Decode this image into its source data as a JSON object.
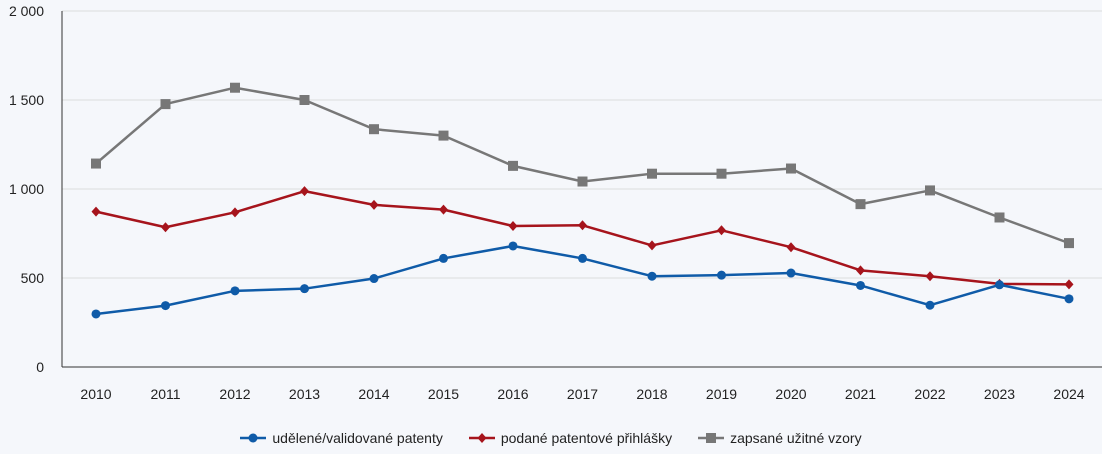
{
  "chart_data": {
    "type": "line",
    "title": "",
    "xlabel": "",
    "ylabel": "",
    "categories": [
      "2010",
      "2011",
      "2012",
      "2013",
      "2014",
      "2015",
      "2016",
      "2017",
      "2018",
      "2019",
      "2020",
      "2021",
      "2022",
      "2023",
      "2024"
    ],
    "ylim": [
      0,
      2000
    ],
    "yticks": [
      0,
      500,
      1000,
      1500,
      2000
    ],
    "ytick_labels": [
      "0",
      "500",
      "1 000",
      "1 500",
      "2 000"
    ],
    "grid": true,
    "legend_position": "bottom",
    "series": [
      {
        "name": "udělené/validované patenty",
        "color": "#0f5ba8",
        "marker": "circle",
        "values": [
          298,
          345,
          428,
          440,
          497,
          610,
          680,
          610,
          510,
          516,
          528,
          458,
          347,
          462,
          383
        ]
      },
      {
        "name": "podané patentové přihlášky",
        "color": "#a6141c",
        "marker": "diamond",
        "values": [
          873,
          785,
          869,
          988,
          911,
          884,
          792,
          796,
          683,
          768,
          673,
          543,
          510,
          467,
          464
        ]
      },
      {
        "name": "zapsané užitné vzory",
        "color": "#777777",
        "marker": "square",
        "values": [
          1143,
          1477,
          1569,
          1500,
          1336,
          1300,
          1130,
          1042,
          1086,
          1086,
          1115,
          915,
          992,
          840,
          696
        ]
      }
    ]
  }
}
